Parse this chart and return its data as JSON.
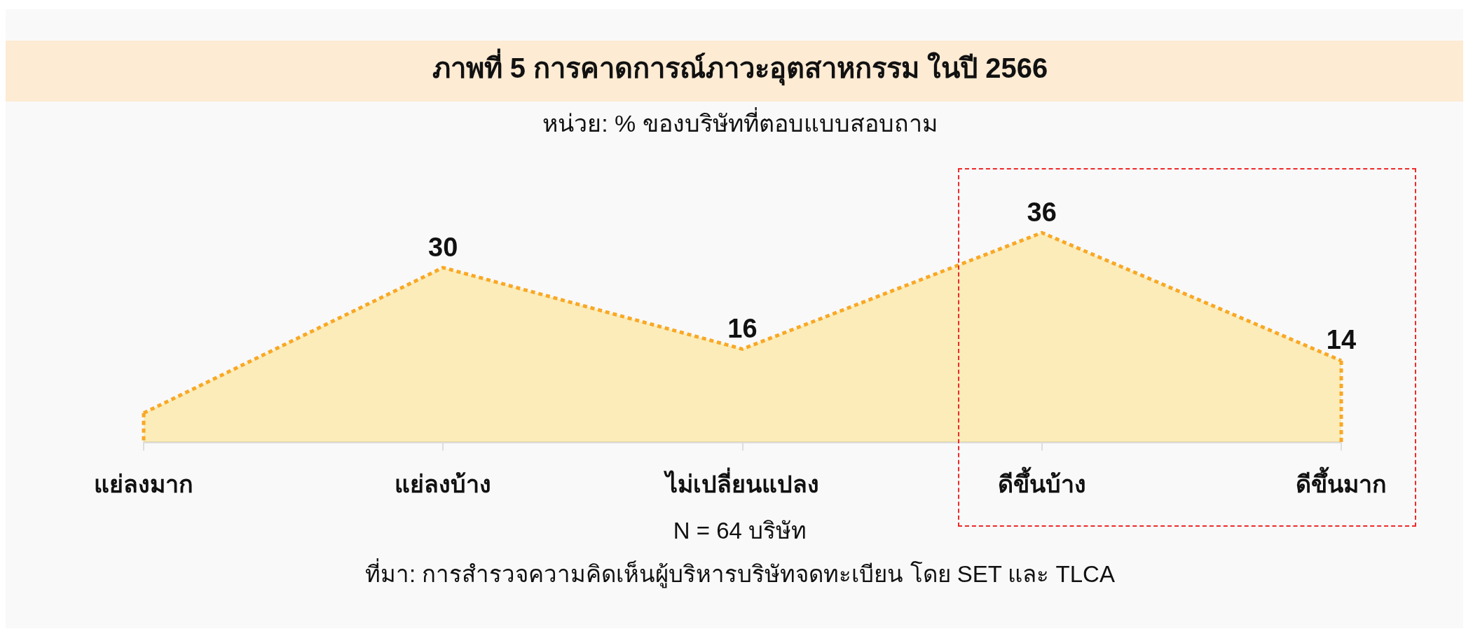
{
  "chart_data": {
    "type": "area",
    "title": "ภาพที่ 5 การคาดการณ์ภาวะอุตสาหกรรม ในปี 2566",
    "subtitle": "หน่วย: % ของบริษัทที่ตอบแบบสอบถาม",
    "categories": [
      "แย่ลงมาก",
      "แย่ลงบ้าง",
      "ไม่เปลี่ยนแปลง",
      "ดีขึ้นบ้าง",
      "ดีขึ้นมาก"
    ],
    "values": [
      5,
      30,
      16,
      36,
      14
    ],
    "value_labels": [
      null,
      "30",
      "16",
      "36",
      "14"
    ],
    "color": "#f9a825",
    "marker": "none",
    "line_style": "dotted",
    "tick_labels": "x",
    "annotations": [
      "N = 64 บริษัท",
      "ที่มา: การสำรวจความคิดเห็นผู้บริหารบริษัทจดทะเบียน โดย SET และ TLCA"
    ]
  }
}
